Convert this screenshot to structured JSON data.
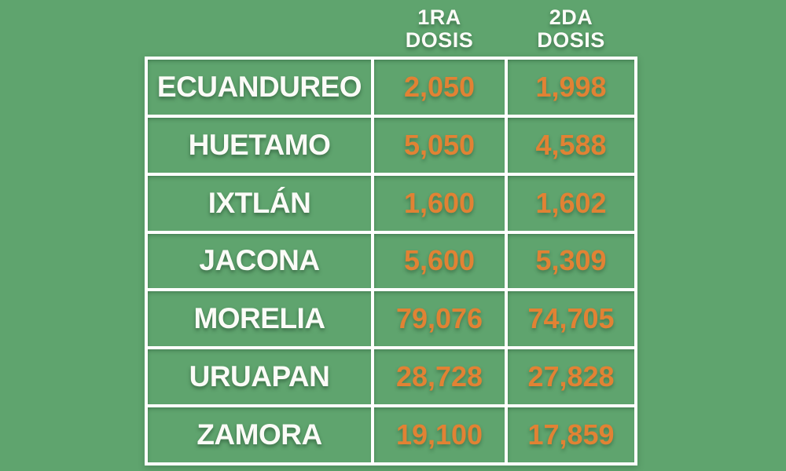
{
  "colors": {
    "background": "#5fa46e",
    "grid_line": "#ffffff",
    "municipality_text": "#fbfbf7",
    "dose_text": "#e18234"
  },
  "header": {
    "dose1": "1RA\nDOSIS",
    "dose2": "2DA\nDOSIS"
  },
  "table": {
    "rows": [
      {
        "name": "ECUANDUREO",
        "dose1": "2,050",
        "dose2": "1,998"
      },
      {
        "name": "HUETAMO",
        "dose1": "5,050",
        "dose2": "4,588"
      },
      {
        "name": "IXTLÁN",
        "dose1": "1,600",
        "dose2": "1,602"
      },
      {
        "name": "JACONA",
        "dose1": "5,600",
        "dose2": "5,309"
      },
      {
        "name": "MORELIA",
        "dose1": "79,076",
        "dose2": "74,705"
      },
      {
        "name": "URUAPAN",
        "dose1": "28,728",
        "dose2": "27,828"
      },
      {
        "name": "ZAMORA",
        "dose1": "19,100",
        "dose2": "17,859"
      }
    ]
  },
  "chart_data": {
    "type": "table",
    "title": "",
    "columns": [
      "",
      "1RA DOSIS",
      "2DA DOSIS"
    ],
    "rows": [
      [
        "ECUANDUREO",
        2050,
        1998
      ],
      [
        "HUETAMO",
        5050,
        4588
      ],
      [
        "IXTLÁN",
        1600,
        1602
      ],
      [
        "JACONA",
        5600,
        5309
      ],
      [
        "MORELIA",
        79076,
        74705
      ],
      [
        "URUAPAN",
        28728,
        27828
      ],
      [
        "ZAMORA",
        19100,
        17859
      ]
    ]
  }
}
